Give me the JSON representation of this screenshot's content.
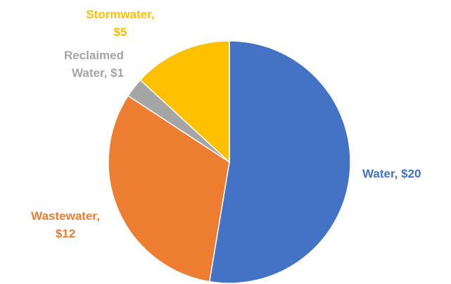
{
  "chart_data": {
    "type": "pie",
    "title": "",
    "start_position": "top",
    "direction": "clockwise",
    "legend": "none",
    "slices": [
      {
        "name": "Water",
        "value": 20,
        "label_line1": "Water, $20",
        "label_line2": "",
        "color": "#4472C4"
      },
      {
        "name": "Wastewater",
        "value": 12,
        "label_line1": "Wastewater,",
        "label_line2": "$12",
        "color": "#ED7D31"
      },
      {
        "name": "Reclaimed Water",
        "value": 1,
        "label_line1": "Reclaimed",
        "label_line2": "Water, $1",
        "color": "#A5A5A5"
      },
      {
        "name": "Stormwater",
        "value": 5,
        "label_line1": "Stormwater,",
        "label_line2": "$5",
        "color": "#FFC000"
      }
    ]
  }
}
